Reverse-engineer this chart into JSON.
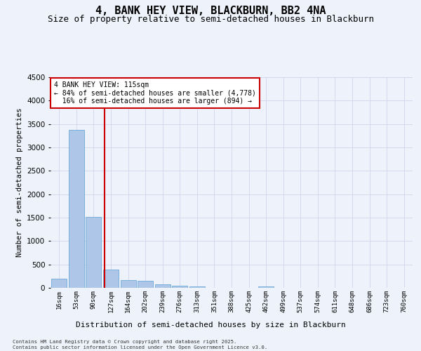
{
  "title": "4, BANK HEY VIEW, BLACKBURN, BB2 4NA",
  "subtitle": "Size of property relative to semi-detached houses in Blackburn",
  "xlabel": "Distribution of semi-detached houses by size in Blackburn",
  "ylabel": "Number of semi-detached properties",
  "footnote": "Contains HM Land Registry data © Crown copyright and database right 2025.\nContains public sector information licensed under the Open Government Licence v3.0.",
  "bar_labels": [
    "16sqm",
    "53sqm",
    "90sqm",
    "127sqm",
    "164sqm",
    "202sqm",
    "239sqm",
    "276sqm",
    "313sqm",
    "351sqm",
    "388sqm",
    "425sqm",
    "462sqm",
    "499sqm",
    "537sqm",
    "574sqm",
    "611sqm",
    "648sqm",
    "686sqm",
    "723sqm",
    "760sqm"
  ],
  "bar_values": [
    200,
    3370,
    1510,
    390,
    165,
    150,
    70,
    40,
    30,
    0,
    0,
    0,
    25,
    0,
    0,
    0,
    0,
    0,
    0,
    0,
    0
  ],
  "bar_color": "#aec6e8",
  "bar_edge_color": "#5a9fd4",
  "property_line_x": 2.62,
  "property_line_color": "#cc0000",
  "annotation_title": "4 BANK HEY VIEW: 115sqm",
  "annotation_line1": "← 84% of semi-detached houses are smaller (4,778)",
  "annotation_line2": "16% of semi-detached houses are larger (894) →",
  "annotation_box_color": "#cc0000",
  "ylim": [
    0,
    4500
  ],
  "bg_color": "#eef2fa",
  "grid_color": "#c8d0e8",
  "title_fontsize": 11,
  "subtitle_fontsize": 9
}
